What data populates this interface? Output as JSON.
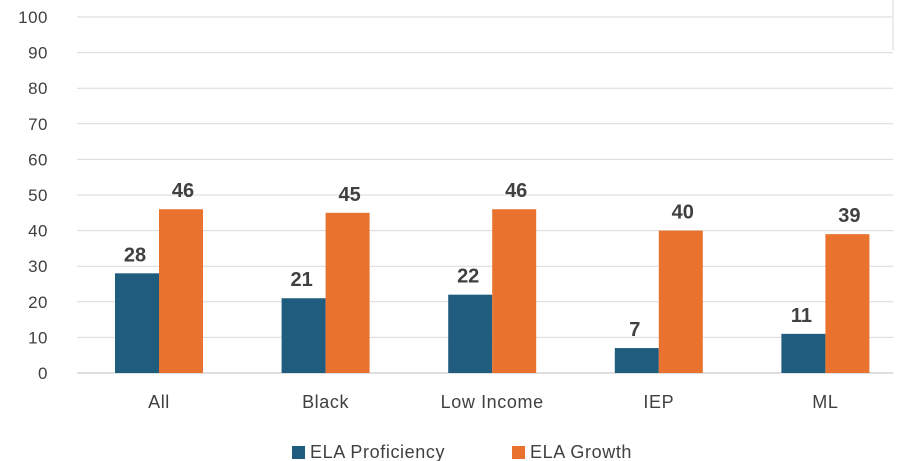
{
  "chart_data": {
    "type": "bar",
    "categories": [
      "All",
      "Black",
      "Low Income",
      "IEP",
      "ML"
    ],
    "series": [
      {
        "name": "ELA Proficiency",
        "values": [
          28,
          21,
          22,
          7,
          11
        ],
        "color": "#1F5C7E"
      },
      {
        "name": "ELA Growth",
        "values": [
          46,
          45,
          46,
          40,
          39
        ],
        "color": "#E8722E"
      }
    ],
    "ylim": [
      0,
      100
    ],
    "yticks": [
      0,
      10,
      20,
      30,
      40,
      50,
      60,
      70,
      80,
      90,
      100
    ],
    "grid": true,
    "data_labels": true,
    "legend_position": "bottom"
  },
  "colors": {
    "gridline": "#d9d9d9",
    "axis": "#bfbfbf",
    "text": "#404040"
  }
}
